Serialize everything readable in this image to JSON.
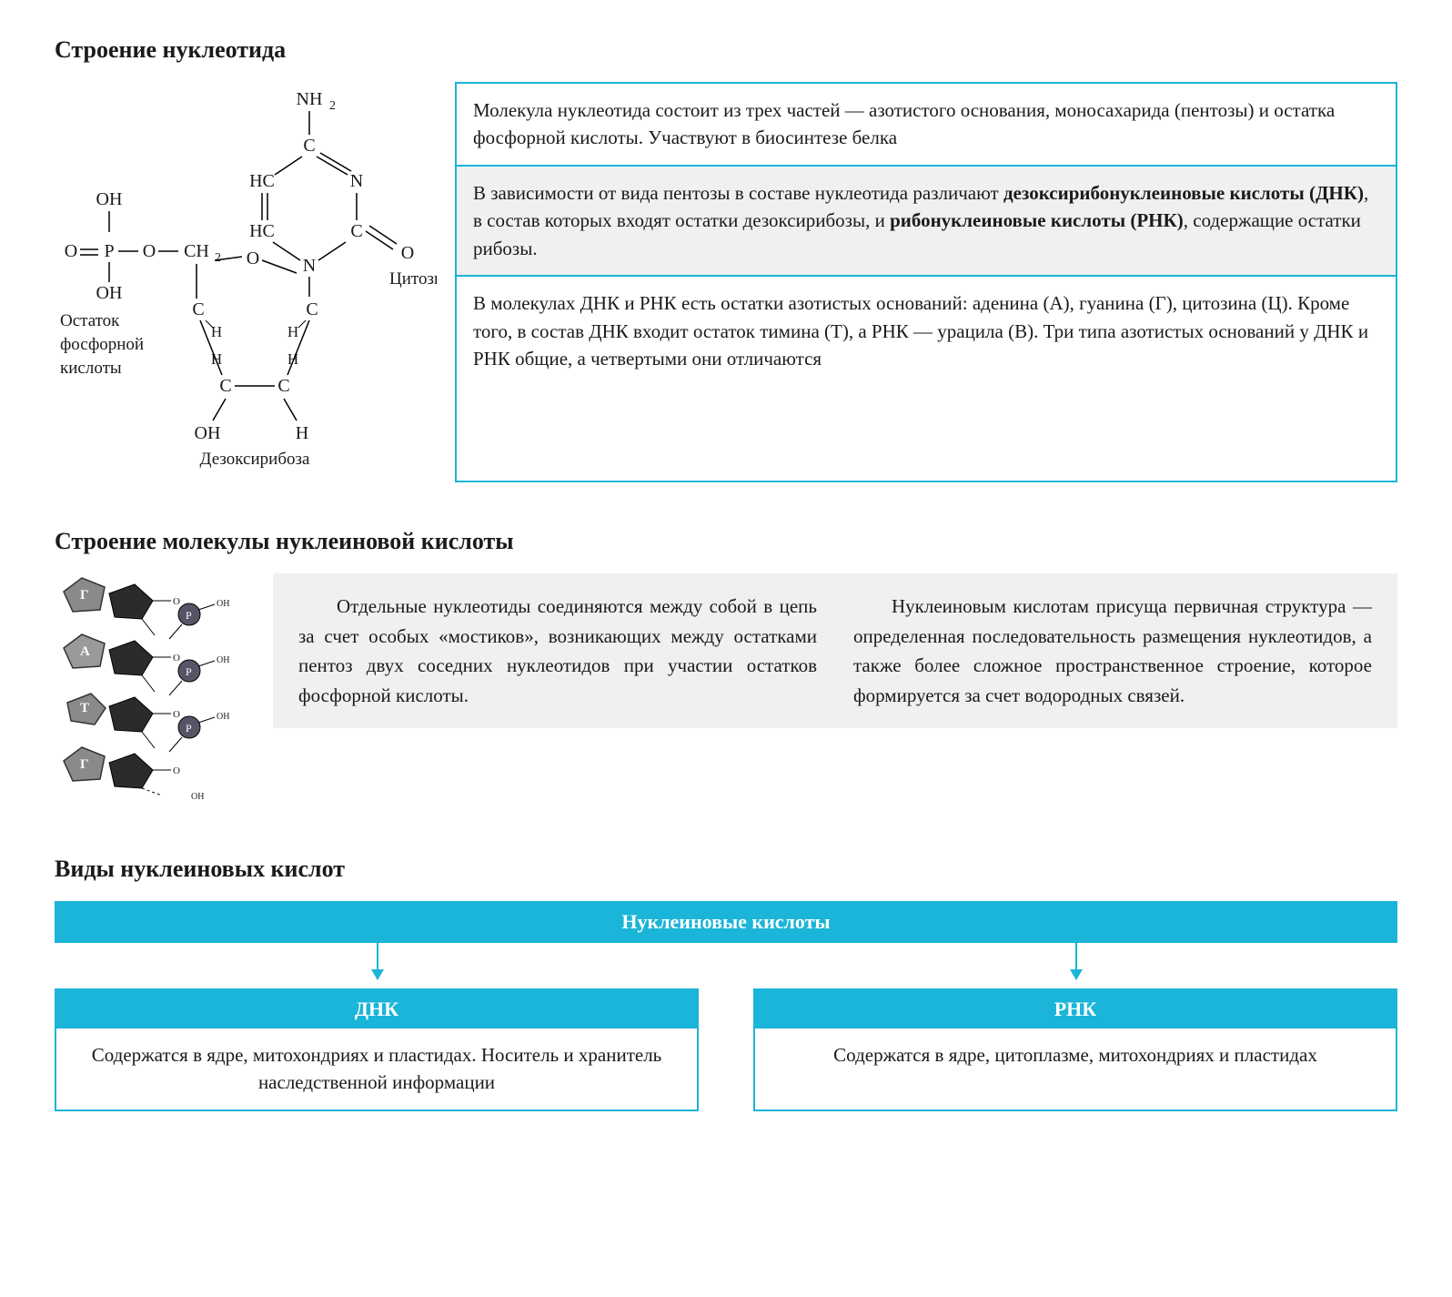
{
  "colors": {
    "accent": "#1ab5d8",
    "gray_bg": "#f0f0f0",
    "text": "#1a1a1a",
    "white": "#ffffff"
  },
  "section1": {
    "title": "Строение нуклеотида",
    "diagram": {
      "labels": {
        "nh2": "NH₂",
        "cytosine": "Цитозин",
        "phosphate_caption": "Остаток фосфорной кислоты",
        "deoxyribose": "Дезоксирибоза"
      },
      "atoms": [
        "O",
        "P",
        "OH",
        "O",
        "CH₂",
        "O",
        "C",
        "H",
        "HC",
        "N",
        "N",
        "C",
        "Цитозин"
      ]
    },
    "boxes": [
      {
        "bg": "white",
        "html": "Молекула нуклеотида состоит из трех частей — азотистого основания, моносахарида (пентозы) и остатка фосфорной кислоты. Участвуют в биосинтезе белка"
      },
      {
        "bg": "gray",
        "html": "В зависимости от вида пентозы в составе нуклеотида различают <b>дезоксирибонуклеиновые кислоты (ДНК)</b>, в состав которых входят остатки дезоксирибозы, и <b>рибонуклеиновые кислоты (РНК)</b>, содержащие остатки рибозы."
      },
      {
        "bg": "white",
        "html": "В молекулах ДНК и РНК есть остатки азотистых оснований: аденина (А), гуанина (Г), цитозина (Ц). Кроме того, в состав ДНК входит остаток тимина (Т), а РНК — урацила (В). Три типа азотистых оснований у ДНК и РНК общие, а четвертыми они отличаются"
      }
    ]
  },
  "section2": {
    "title": "Строение молекулы нуклеиновой кислоты",
    "chain_bases": [
      "Г",
      "А",
      "Т",
      "Г"
    ],
    "col1": "Отдельные нуклеотиды соединяются между собой в цепь за счет особых «мостиков», возникающих между остатками пентоз двух соседних нуклеотидов при участии остатков фосфорной кислоты.",
    "col2": "Нуклеиновым кислотам присуща первичная структура — определенная последовательность размещения нуклеотидов, а также более сложное пространственное строение, которое формируется за счет водородных связей."
  },
  "section3": {
    "title": "Виды нуклеиновых кислот",
    "header": "Нуклеиновые кислоты",
    "boxes": [
      {
        "title": "ДНК",
        "body": "Содержатся в ядре, митохондриях и пластидах. Носитель и хранитель наследственной информации"
      },
      {
        "title": "РНК",
        "body": "Содержатся в ядре, цитоплазме, митохондриях и пластидах"
      }
    ]
  }
}
